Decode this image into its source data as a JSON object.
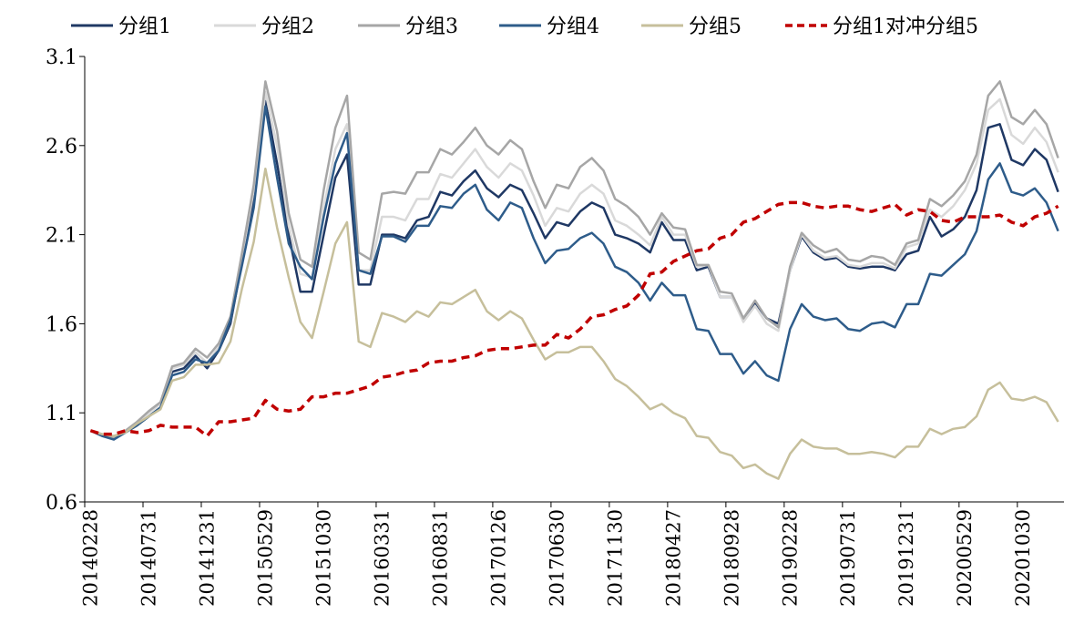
{
  "chart_data": {
    "type": "line",
    "title": "",
    "xlabel": "",
    "ylabel": "",
    "ylim": [
      0.6,
      3.1
    ],
    "yticks": [
      0.6,
      1.1,
      1.6,
      2.1,
      2.6,
      3.1
    ],
    "ytick_labels": [
      "0.6",
      "1.1",
      "1.6",
      "2.1",
      "2.6",
      "3.1"
    ],
    "xtick_labels": [
      "20140228",
      "20140731",
      "20141231",
      "20150529",
      "20151030",
      "20160331",
      "20160831",
      "20170126",
      "20170630",
      "20171130",
      "20180427",
      "20180928",
      "20190228",
      "20190731",
      "20191231",
      "20200529",
      "20201030"
    ],
    "xtick_every": 5,
    "n_points": 84,
    "legend_position": "top",
    "series": [
      {
        "name": "分组1",
        "color": "#1f3864",
        "dash": "solid",
        "values": [
          1.0,
          0.98,
          0.96,
          0.99,
          1.03,
          1.08,
          1.13,
          1.33,
          1.35,
          1.42,
          1.35,
          1.45,
          1.6,
          1.95,
          2.3,
          2.85,
          2.5,
          2.1,
          1.78,
          1.78,
          2.1,
          2.42,
          2.55,
          1.82,
          1.82,
          2.1,
          2.1,
          2.08,
          2.18,
          2.2,
          2.34,
          2.32,
          2.4,
          2.46,
          2.36,
          2.31,
          2.38,
          2.35,
          2.22,
          2.08,
          2.17,
          2.15,
          2.23,
          2.28,
          2.25,
          2.1,
          2.08,
          2.05,
          2.0,
          2.17,
          2.07,
          2.07,
          1.9,
          1.92,
          1.75,
          1.75,
          1.63,
          1.72,
          1.63,
          1.6,
          1.9,
          2.09,
          2.0,
          1.96,
          1.97,
          1.92,
          1.91,
          1.92,
          1.92,
          1.9,
          1.99,
          2.01,
          2.2,
          2.09,
          2.13,
          2.2,
          2.35,
          2.7,
          2.72,
          2.52,
          2.49,
          2.58,
          2.52,
          2.34
        ]
      },
      {
        "name": "分组2",
        "color": "#d9d9d9",
        "dash": "solid",
        "values": [
          1.0,
          0.98,
          0.97,
          1.0,
          1.04,
          1.1,
          1.15,
          1.35,
          1.37,
          1.44,
          1.38,
          1.47,
          1.62,
          1.98,
          2.35,
          2.9,
          2.6,
          2.15,
          1.88,
          1.86,
          2.25,
          2.58,
          2.72,
          1.9,
          1.9,
          2.2,
          2.2,
          2.18,
          2.3,
          2.3,
          2.44,
          2.42,
          2.5,
          2.58,
          2.48,
          2.42,
          2.5,
          2.46,
          2.32,
          2.15,
          2.25,
          2.23,
          2.33,
          2.38,
          2.33,
          2.18,
          2.15,
          2.1,
          2.04,
          2.2,
          2.1,
          2.1,
          1.92,
          1.93,
          1.75,
          1.75,
          1.61,
          1.7,
          1.6,
          1.56,
          1.9,
          2.1,
          2.01,
          1.97,
          1.98,
          1.93,
          1.92,
          1.94,
          1.94,
          1.91,
          2.03,
          2.05,
          2.24,
          2.2,
          2.26,
          2.35,
          2.5,
          2.8,
          2.86,
          2.66,
          2.61,
          2.7,
          2.62,
          2.45
        ]
      },
      {
        "name": "分组3",
        "color": "#a6a6a6",
        "dash": "solid",
        "values": [
          1.0,
          0.97,
          0.96,
          1.0,
          1.05,
          1.11,
          1.16,
          1.36,
          1.38,
          1.46,
          1.41,
          1.49,
          1.64,
          2.0,
          2.38,
          2.96,
          2.68,
          2.22,
          1.96,
          1.92,
          2.35,
          2.7,
          2.88,
          2.0,
          1.96,
          2.33,
          2.34,
          2.33,
          2.45,
          2.45,
          2.58,
          2.55,
          2.62,
          2.7,
          2.6,
          2.55,
          2.63,
          2.58,
          2.4,
          2.25,
          2.38,
          2.36,
          2.48,
          2.53,
          2.46,
          2.3,
          2.26,
          2.2,
          2.1,
          2.22,
          2.14,
          2.13,
          1.93,
          1.93,
          1.78,
          1.77,
          1.63,
          1.73,
          1.63,
          1.58,
          1.92,
          2.11,
          2.04,
          2.0,
          2.02,
          1.96,
          1.95,
          1.98,
          1.97,
          1.93,
          2.05,
          2.07,
          2.3,
          2.26,
          2.32,
          2.4,
          2.55,
          2.88,
          2.96,
          2.76,
          2.72,
          2.8,
          2.72,
          2.53
        ]
      },
      {
        "name": "分组4",
        "color": "#2e5c8a",
        "dash": "solid",
        "values": [
          1.0,
          0.97,
          0.95,
          0.99,
          1.03,
          1.08,
          1.13,
          1.31,
          1.33,
          1.4,
          1.38,
          1.45,
          1.62,
          1.93,
          2.25,
          2.82,
          2.42,
          2.05,
          1.92,
          1.85,
          2.2,
          2.5,
          2.67,
          1.9,
          1.88,
          2.09,
          2.09,
          2.06,
          2.15,
          2.15,
          2.26,
          2.25,
          2.33,
          2.38,
          2.24,
          2.18,
          2.28,
          2.25,
          2.08,
          1.94,
          2.01,
          2.02,
          2.08,
          2.11,
          2.05,
          1.92,
          1.89,
          1.83,
          1.73,
          1.83,
          1.76,
          1.76,
          1.57,
          1.56,
          1.43,
          1.43,
          1.32,
          1.39,
          1.31,
          1.28,
          1.57,
          1.71,
          1.64,
          1.62,
          1.63,
          1.57,
          1.56,
          1.6,
          1.61,
          1.58,
          1.71,
          1.71,
          1.88,
          1.87,
          1.93,
          1.99,
          2.12,
          2.41,
          2.5,
          2.34,
          2.32,
          2.36,
          2.28,
          2.12
        ]
      },
      {
        "name": "分组5",
        "color": "#c6bf9b",
        "dash": "solid",
        "values": [
          1.0,
          0.98,
          0.97,
          0.99,
          1.04,
          1.08,
          1.12,
          1.28,
          1.3,
          1.37,
          1.37,
          1.38,
          1.5,
          1.8,
          2.06,
          2.47,
          2.14,
          1.86,
          1.61,
          1.52,
          1.78,
          2.05,
          2.17,
          1.5,
          1.47,
          1.66,
          1.64,
          1.61,
          1.67,
          1.64,
          1.72,
          1.71,
          1.75,
          1.79,
          1.67,
          1.62,
          1.67,
          1.63,
          1.51,
          1.4,
          1.44,
          1.44,
          1.47,
          1.47,
          1.39,
          1.29,
          1.25,
          1.19,
          1.12,
          1.15,
          1.1,
          1.07,
          0.97,
          0.96,
          0.88,
          0.86,
          0.79,
          0.81,
          0.76,
          0.73,
          0.87,
          0.95,
          0.91,
          0.9,
          0.9,
          0.87,
          0.87,
          0.88,
          0.87,
          0.85,
          0.91,
          0.91,
          1.01,
          0.98,
          1.01,
          1.02,
          1.08,
          1.23,
          1.27,
          1.18,
          1.17,
          1.19,
          1.16,
          1.05
        ]
      },
      {
        "name": "分组1对冲分组5",
        "color": "#c00000",
        "dash": "dashed",
        "values": [
          1.0,
          0.98,
          0.98,
          1.0,
          0.99,
          1.0,
          1.03,
          1.02,
          1.02,
          1.02,
          0.97,
          1.05,
          1.05,
          1.06,
          1.07,
          1.17,
          1.12,
          1.11,
          1.12,
          1.19,
          1.19,
          1.21,
          1.21,
          1.23,
          1.25,
          1.3,
          1.31,
          1.33,
          1.34,
          1.38,
          1.39,
          1.39,
          1.41,
          1.42,
          1.45,
          1.46,
          1.46,
          1.47,
          1.48,
          1.48,
          1.54,
          1.52,
          1.57,
          1.64,
          1.65,
          1.68,
          1.7,
          1.76,
          1.88,
          1.89,
          1.95,
          1.98,
          2.01,
          2.02,
          2.08,
          2.1,
          2.17,
          2.19,
          2.23,
          2.27,
          2.28,
          2.28,
          2.26,
          2.25,
          2.26,
          2.26,
          2.24,
          2.23,
          2.25,
          2.27,
          2.21,
          2.24,
          2.23,
          2.18,
          2.17,
          2.2,
          2.2,
          2.2,
          2.21,
          2.17,
          2.15,
          2.2,
          2.22,
          2.26
        ]
      }
    ]
  }
}
